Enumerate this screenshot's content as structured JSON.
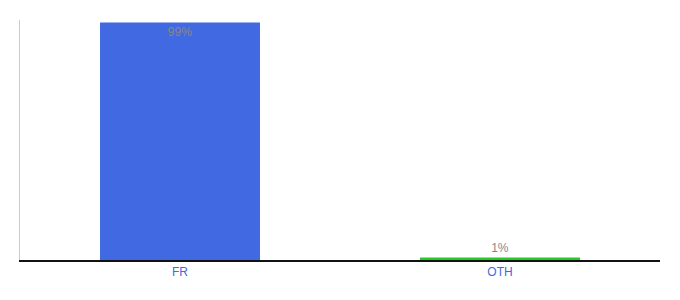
{
  "chart_data": {
    "type": "bar",
    "categories": [
      "FR",
      "OTH"
    ],
    "values": [
      99,
      1
    ],
    "value_labels": [
      "99%",
      "1%"
    ],
    "colors": [
      "#4169E1",
      "#22CC22"
    ],
    "ylim": [
      0,
      100
    ],
    "data_labels": true,
    "tick_labels": "x",
    "grid": false
  }
}
